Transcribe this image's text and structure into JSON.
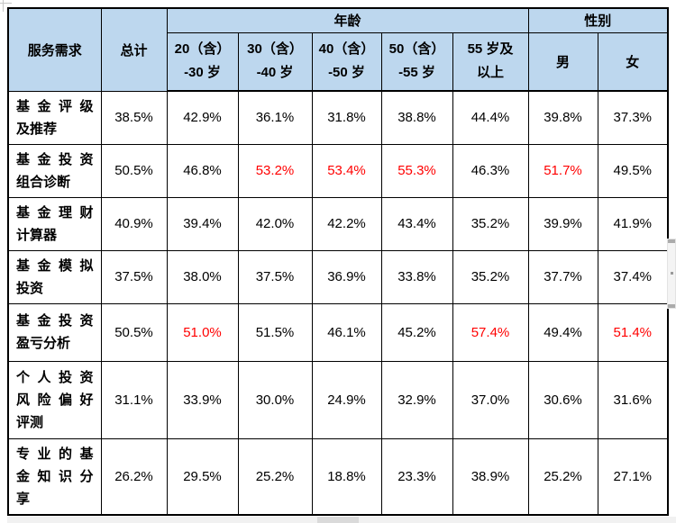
{
  "colors": {
    "header_bg": "#BDD7EE",
    "highlight_text": "#FF0000",
    "body_text": "#000000",
    "border": "#000000"
  },
  "table": {
    "corner_header": "服务需求",
    "total_header": "总计",
    "group_headers": {
      "age": "年龄",
      "gender": "性别"
    },
    "age_columns": [
      {
        "lines": [
          "20（含）",
          "-30 岁"
        ]
      },
      {
        "lines": [
          "30（含）",
          "-40 岁"
        ]
      },
      {
        "lines": [
          "40（含）",
          "-50 岁"
        ]
      },
      {
        "lines": [
          "50（含）",
          "-55 岁"
        ]
      },
      {
        "lines": [
          "55 岁及",
          "以上"
        ]
      }
    ],
    "gender_columns": [
      "男",
      "女"
    ],
    "rows": [
      {
        "label": "基金评级及推荐",
        "values": [
          "38.5%",
          "42.9%",
          "36.1%",
          "31.8%",
          "38.8%",
          "44.4%",
          "39.8%",
          "37.3%"
        ],
        "highlighted": []
      },
      {
        "label": "基金投资组合诊断",
        "values": [
          "50.5%",
          "46.8%",
          "53.2%",
          "53.4%",
          "55.3%",
          "46.3%",
          "51.7%",
          "49.5%"
        ],
        "highlighted": [
          2,
          3,
          4,
          6
        ]
      },
      {
        "label": "基金理财计算器",
        "values": [
          "40.9%",
          "39.4%",
          "42.0%",
          "42.2%",
          "43.4%",
          "35.2%",
          "39.9%",
          "41.9%"
        ],
        "highlighted": []
      },
      {
        "label": "基金模拟投资",
        "values": [
          "37.5%",
          "38.0%",
          "37.5%",
          "36.9%",
          "33.8%",
          "35.2%",
          "37.7%",
          "37.4%"
        ],
        "highlighted": []
      },
      {
        "label": "基金投资盈亏分析",
        "values": [
          "50.5%",
          "51.0%",
          "51.5%",
          "46.1%",
          "45.2%",
          "57.4%",
          "49.4%",
          "51.4%"
        ],
        "highlighted": [
          1,
          5,
          7
        ]
      },
      {
        "label": "个人投资风险偏好评测",
        "values": [
          "31.1%",
          "33.9%",
          "30.0%",
          "24.9%",
          "32.9%",
          "37.0%",
          "30.6%",
          "31.6%"
        ],
        "highlighted": []
      },
      {
        "label": "专业的基金知识分享",
        "values": [
          "26.2%",
          "29.5%",
          "25.2%",
          "18.8%",
          "23.3%",
          "38.9%",
          "25.2%",
          "27.1%"
        ],
        "highlighted": []
      }
    ]
  }
}
